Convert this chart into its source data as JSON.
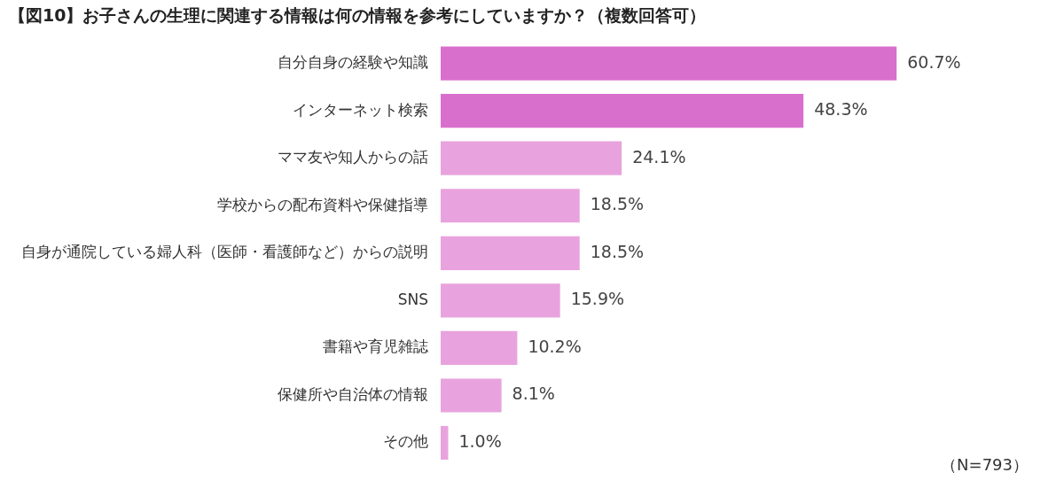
{
  "chart_data": {
    "type": "bar",
    "orientation": "horizontal",
    "title": "【図10】お子さんの生理に関連する情報は何の情報を参考にしていますか？（複数回答可）",
    "categories": [
      "自分自身の経験や知識",
      "インターネット検索",
      "ママ友や知人からの話",
      "学校からの配布資料や保健指導",
      "自身が通院している婦人科（医師・看護師など）からの説明",
      "SNS",
      "書籍や育児雑誌",
      "保健所や自治体の情報",
      "その他"
    ],
    "values": [
      60.7,
      48.3,
      24.1,
      18.5,
      18.5,
      15.9,
      10.2,
      8.1,
      1.0
    ],
    "value_labels": [
      "60.7%",
      "48.3%",
      "24.1%",
      "18.5%",
      "18.5%",
      "15.9%",
      "10.2%",
      "8.1%",
      "1.0%"
    ],
    "colors": [
      "#d96fcd",
      "#d96fcd",
      "#e8a3de",
      "#e8a3de",
      "#e8a3de",
      "#e8a3de",
      "#e8a3de",
      "#e8a3de",
      "#e8a3de"
    ],
    "annotations": [
      "（N=793）"
    ],
    "grid": false,
    "legend": false
  }
}
